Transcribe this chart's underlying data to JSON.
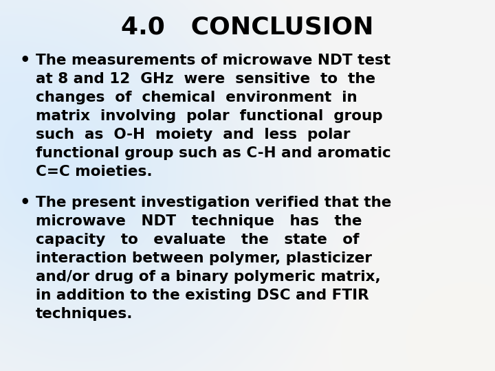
{
  "title": "4.0   CONCLUSION",
  "bullet1_lines": [
    "The measurements of microwave NDT test",
    "at 8 and 12  GHz  were  sensitive  to  the",
    "changes  of  chemical  environment  in",
    "matrix  involving  polar  functional  group",
    "such  as  O-H  moiety  and  less  polar",
    "functional group such as C-H and aromatic",
    "C=C moieties."
  ],
  "bullet2_lines": [
    "The present investigation verified that the",
    "microwave   NDT   technique   has   the",
    "capacity   to   evaluate   the   state   of",
    "interaction between polymer, plasticizer",
    "and/or drug of a binary polymeric matrix,",
    "in addition to the existing DSC and FTIR",
    "techniques."
  ],
  "title_fontsize": 26,
  "body_fontsize": 15.5,
  "title_color": "#000000",
  "text_color": "#000000",
  "figsize": [
    7.2,
    5.4
  ],
  "dpi": 100
}
